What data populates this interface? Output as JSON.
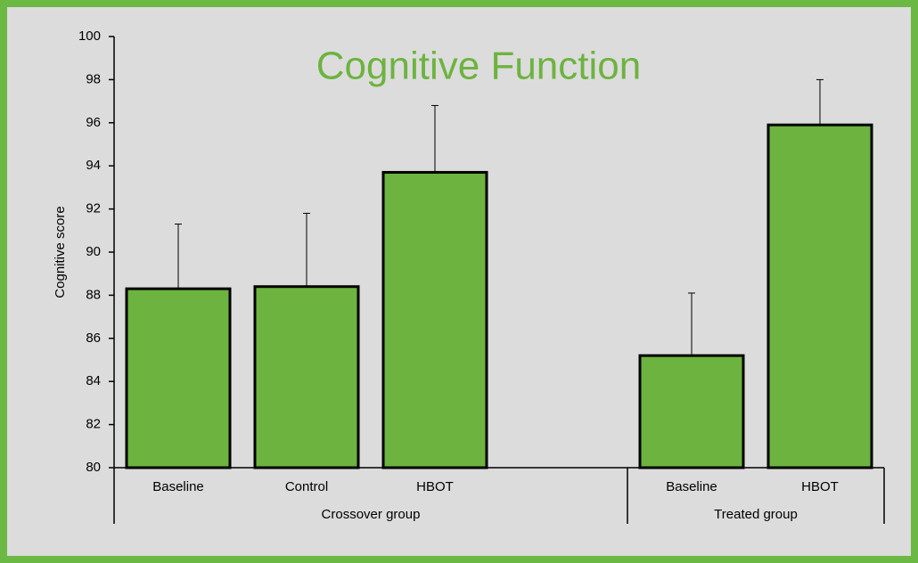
{
  "chart_data": {
    "type": "bar",
    "title": "Cognitive Function",
    "y_label": "Cognitive score",
    "groups": [
      {
        "name": "Crossover group",
        "categories": [
          "Baseline",
          "Control",
          "HBOT",
          null
        ],
        "values": [
          88.3,
          88.4,
          93.7,
          null
        ],
        "errors": [
          3.0,
          3.4,
          3.1,
          null
        ]
      },
      {
        "name": "Treated group",
        "categories": [
          "Baseline",
          "HBOT"
        ],
        "values": [
          85.2,
          95.9
        ],
        "errors": [
          2.9,
          2.1
        ]
      }
    ],
    "color": "#6db33f",
    "ylim": [
      80,
      100
    ],
    "yticks": [
      80,
      82,
      84,
      86,
      88,
      90,
      92,
      94,
      96,
      98,
      100
    ]
  }
}
